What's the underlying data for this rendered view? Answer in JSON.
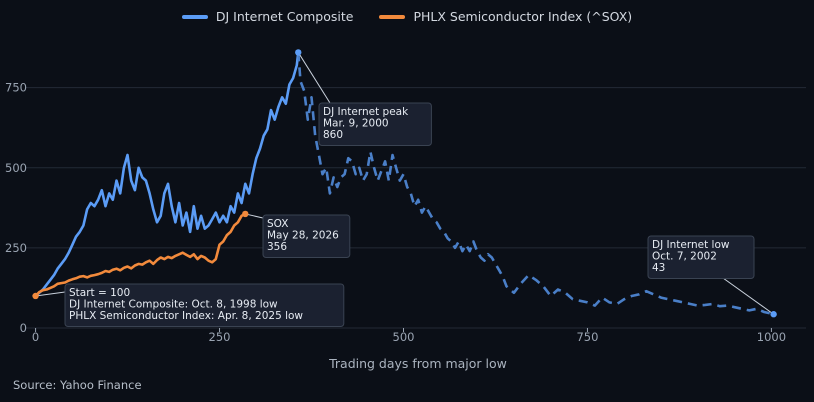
{
  "source": "Source: Yahoo Finance",
  "chart_data": {
    "type": "line",
    "title": "",
    "xlabel": "Trading days from major low",
    "ylabel": "",
    "xlim": [
      -13,
      1047
    ],
    "ylim": [
      0,
      930
    ],
    "x_ticks": [
      0,
      250,
      500,
      750,
      1000
    ],
    "x_tick_labels": [
      "0",
      "250",
      "500",
      "750",
      "1000"
    ],
    "y_ticks": [
      0,
      250,
      500,
      750
    ],
    "y_tick_labels": [
      "0",
      "250",
      "500",
      "750"
    ],
    "grid": "horizontal",
    "legend_position": "top-center",
    "colors": {
      "background": "#0b0f17",
      "dj": "#5b9cf6",
      "dj_after_peak": "#4a7fc8",
      "sox": "#f28a3c",
      "grid": "#232a36",
      "axis_text": "#9aa4b2"
    },
    "series": [
      {
        "name": "DJ Internet Composite",
        "style": "solid then dashed after peak",
        "x": [
          0,
          5,
          10,
          15,
          20,
          25,
          30,
          35,
          40,
          45,
          50,
          55,
          60,
          65,
          70,
          75,
          80,
          85,
          90,
          95,
          100,
          105,
          110,
          115,
          120,
          125,
          130,
          135,
          140,
          145,
          150,
          155,
          160,
          165,
          170,
          175,
          180,
          185,
          190,
          195,
          200,
          205,
          210,
          215,
          220,
          225,
          230,
          235,
          240,
          245,
          250,
          255,
          260,
          265,
          270,
          275,
          280,
          285,
          290,
          295,
          300,
          305,
          310,
          315,
          320,
          325,
          330,
          335,
          340,
          345,
          350,
          355,
          357,
          360,
          365,
          370,
          375,
          380,
          385,
          390,
          395,
          400,
          405,
          410,
          415,
          420,
          425,
          430,
          435,
          440,
          445,
          450,
          455,
          460,
          465,
          470,
          475,
          480,
          485,
          490,
          495,
          500,
          505,
          510,
          515,
          520,
          525,
          530,
          535,
          540,
          545,
          550,
          555,
          560,
          565,
          570,
          575,
          580,
          585,
          590,
          595,
          600,
          605,
          610,
          615,
          620,
          625,
          630,
          635,
          640,
          650,
          660,
          670,
          680,
          690,
          700,
          710,
          720,
          730,
          740,
          750,
          760,
          770,
          780,
          790,
          800,
          810,
          820,
          830,
          840,
          850,
          860,
          870,
          880,
          890,
          900,
          910,
          920,
          930,
          940,
          950,
          960,
          970,
          980,
          990,
          1000,
          1003
        ],
        "y": [
          100,
          110,
          120,
          135,
          150,
          165,
          185,
          200,
          215,
          235,
          260,
          285,
          300,
          320,
          370,
          390,
          380,
          400,
          430,
          380,
          420,
          400,
          460,
          420,
          500,
          540,
          460,
          430,
          500,
          470,
          460,
          420,
          370,
          330,
          350,
          420,
          450,
          380,
          330,
          390,
          320,
          360,
          300,
          380,
          310,
          350,
          310,
          320,
          340,
          360,
          330,
          350,
          330,
          380,
          360,
          420,
          390,
          450,
          420,
          480,
          530,
          560,
          600,
          620,
          680,
          650,
          690,
          720,
          700,
          760,
          780,
          820,
          860,
          770,
          740,
          650,
          720,
          600,
          540,
          480,
          500,
          420,
          470,
          440,
          470,
          480,
          530,
          520,
          480,
          500,
          460,
          480,
          550,
          500,
          460,
          490,
          520,
          460,
          540,
          500,
          460,
          480,
          440,
          420,
          380,
          400,
          360,
          380,
          360,
          340,
          330,
          310,
          300,
          280,
          270,
          250,
          270,
          240,
          260,
          240,
          270,
          240,
          220,
          210,
          230,
          220,
          200,
          180,
          160,
          130,
          110,
          140,
          165,
          150,
          130,
          100,
          120,
          110,
          90,
          85,
          80,
          70,
          95,
          80,
          75,
          90,
          100,
          105,
          115,
          105,
          95,
          90,
          85,
          80,
          75,
          70,
          72,
          75,
          68,
          70,
          65,
          60,
          55,
          60,
          50,
          45,
          43
        ]
      },
      {
        "name": "PHLX Semiconductor Index (^SOX)",
        "style": "solid",
        "x": [
          0,
          5,
          10,
          15,
          20,
          25,
          30,
          35,
          40,
          45,
          50,
          55,
          60,
          65,
          70,
          75,
          80,
          85,
          90,
          95,
          100,
          105,
          110,
          115,
          120,
          125,
          130,
          135,
          140,
          145,
          150,
          155,
          160,
          165,
          170,
          175,
          180,
          185,
          190,
          195,
          200,
          205,
          210,
          215,
          220,
          225,
          230,
          235,
          240,
          245,
          250,
          255,
          260,
          265,
          270,
          275,
          280,
          285
        ],
        "y": [
          100,
          112,
          118,
          120,
          125,
          130,
          138,
          140,
          142,
          148,
          152,
          155,
          160,
          162,
          158,
          163,
          165,
          168,
          172,
          178,
          175,
          182,
          185,
          180,
          188,
          192,
          186,
          195,
          200,
          198,
          205,
          210,
          200,
          212,
          220,
          215,
          222,
          218,
          225,
          230,
          235,
          228,
          222,
          230,
          215,
          225,
          220,
          210,
          205,
          215,
          260,
          270,
          290,
          300,
          320,
          330,
          350,
          356
        ]
      }
    ],
    "annotations": [
      {
        "id": "dj_peak",
        "x": 357,
        "y": 860,
        "lines": [
          "DJ Internet peak",
          "Mar. 9, 2000",
          "860"
        ]
      },
      {
        "id": "sox_last",
        "x": 285,
        "y": 356,
        "lines": [
          "SOX",
          "May 28, 2026",
          "356"
        ]
      },
      {
        "id": "start",
        "x": 0,
        "y": 100,
        "lines": [
          "Start = 100",
          "DJ Internet Composite: Oct. 8, 1998 low",
          "PHLX Semiconductor Index: Apr. 8, 2025 low"
        ]
      },
      {
        "id": "dj_low",
        "x": 1003,
        "y": 43,
        "lines": [
          "DJ Internet low",
          "Oct. 7, 2002",
          "43"
        ]
      }
    ],
    "peak_index_x": 357
  }
}
